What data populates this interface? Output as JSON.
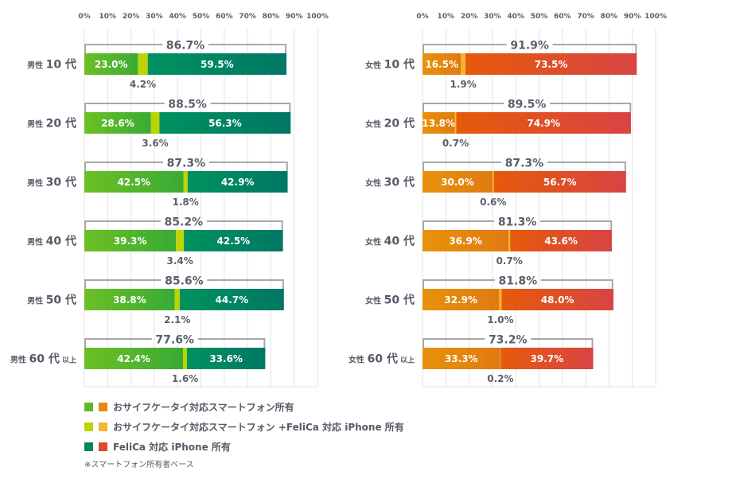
{
  "chart_data": [
    {
      "type": "bar",
      "orientation": "horizontal-stacked",
      "title": "男性",
      "x_ticks": [
        "0%",
        "10%",
        "20%",
        "30%",
        "40%",
        "50%",
        "60%",
        "70%",
        "80%",
        "90%",
        "100%"
      ],
      "xlim": [
        0,
        100
      ],
      "grid": true,
      "categories": [
        {
          "prefix": "男性",
          "main": "10 代",
          "suffix": ""
        },
        {
          "prefix": "男性",
          "main": "20 代",
          "suffix": ""
        },
        {
          "prefix": "男性",
          "main": "30 代",
          "suffix": ""
        },
        {
          "prefix": "男性",
          "main": "40 代",
          "suffix": ""
        },
        {
          "prefix": "男性",
          "main": "50 代",
          "suffix": ""
        },
        {
          "prefix": "男性",
          "main": "60 代",
          "suffix": "以上"
        }
      ],
      "series": [
        {
          "name": "おサイフケータイ対応スマートフォン所有",
          "color_start": "#6cc024",
          "color_end": "#3aaa35",
          "values": [
            23.0,
            28.6,
            42.5,
            39.3,
            38.8,
            42.4
          ]
        },
        {
          "name": "おサイフケータイ対応スマートフォン +FeliCa 対応 iPhone 所有",
          "color_start": "#bcd400",
          "color_end": "#bcd400",
          "values": [
            4.2,
            3.6,
            1.8,
            3.4,
            2.1,
            1.6
          ]
        },
        {
          "name": "FeliCa 対応 iPhone 所有",
          "color_start": "#00925f",
          "color_end": "#007765",
          "values": [
            59.5,
            56.3,
            42.9,
            42.5,
            44.7,
            33.6
          ]
        }
      ],
      "totals": [
        86.7,
        88.5,
        87.3,
        85.2,
        85.6,
        77.6
      ]
    },
    {
      "type": "bar",
      "orientation": "horizontal-stacked",
      "title": "女性",
      "x_ticks": [
        "0%",
        "10%",
        "20%",
        "30%",
        "40%",
        "50%",
        "60%",
        "70%",
        "80%",
        "90%",
        "100%"
      ],
      "xlim": [
        0,
        100
      ],
      "grid": true,
      "categories": [
        {
          "prefix": "女性",
          "main": "10 代",
          "suffix": ""
        },
        {
          "prefix": "女性",
          "main": "20 代",
          "suffix": ""
        },
        {
          "prefix": "女性",
          "main": "30 代",
          "suffix": ""
        },
        {
          "prefix": "女性",
          "main": "40 代",
          "suffix": ""
        },
        {
          "prefix": "女性",
          "main": "50 代",
          "suffix": ""
        },
        {
          "prefix": "女性",
          "main": "60 代",
          "suffix": "以上"
        }
      ],
      "series": [
        {
          "name": "おサイフケータイ対応スマートフォン所有",
          "color_start": "#e8920a",
          "color_end": "#e07a12",
          "values": [
            16.5,
            13.8,
            30.0,
            36.9,
            32.9,
            33.3
          ]
        },
        {
          "name": "おサイフケータイ対応スマートフォン +FeliCa 対応 iPhone 所有",
          "color_start": "#f7b52c",
          "color_end": "#f7b52c",
          "values": [
            1.9,
            0.7,
            0.6,
            0.7,
            1.0,
            0.2
          ]
        },
        {
          "name": "FeliCa 対応 iPhone 所有",
          "color_start": "#e65a0a",
          "color_end": "#d84444",
          "values": [
            73.5,
            74.9,
            56.7,
            43.6,
            48.0,
            39.7
          ]
        }
      ],
      "totals": [
        91.9,
        89.5,
        87.3,
        81.3,
        81.8,
        73.2
      ]
    }
  ],
  "legend": [
    {
      "label": "おサイフケータイ対応スマートフォン所有",
      "colors": [
        "#5cb82c",
        "#e8870e"
      ]
    },
    {
      "label": "おサイフケータイ対応スマートフォン +FeliCa 対応 iPhone 所有",
      "colors": [
        "#bcd400",
        "#f7b52c"
      ]
    },
    {
      "label": "FeliCa 対応 iPhone 所有",
      "colors": [
        "#00845f",
        "#e04a2a"
      ]
    }
  ],
  "note": "※スマートフォン所有者ベース"
}
